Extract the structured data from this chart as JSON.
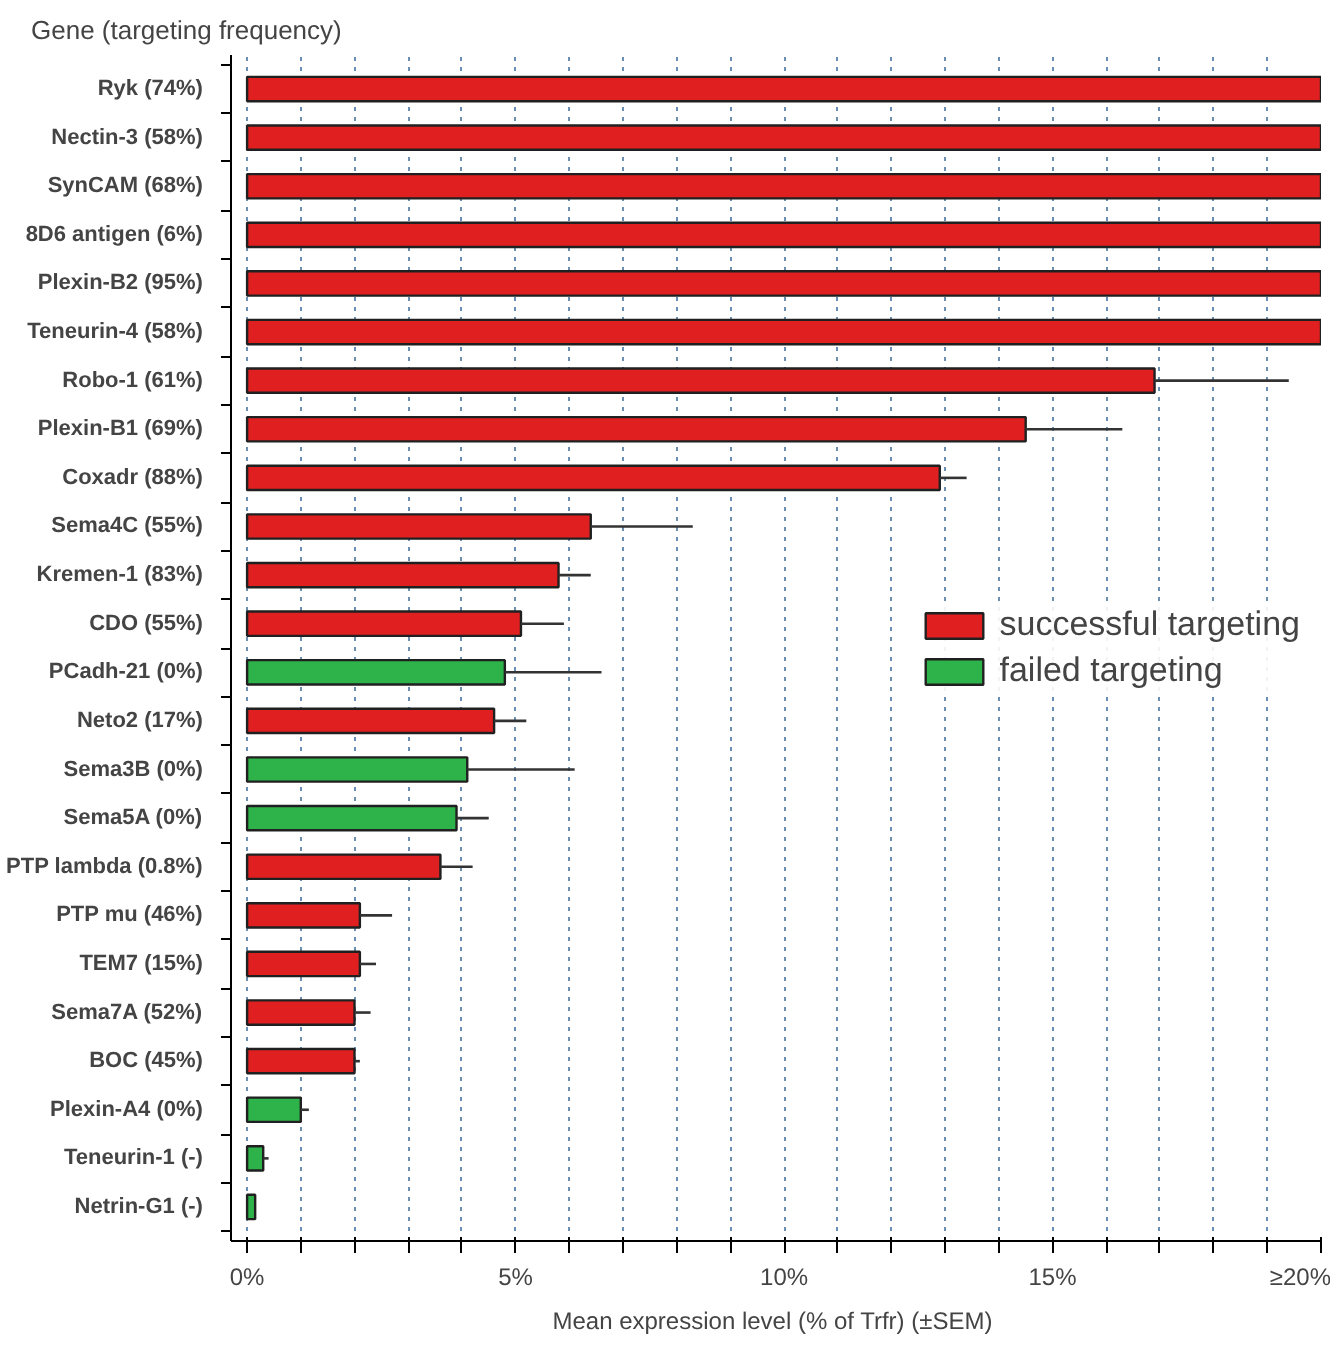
{
  "chart_data": {
    "type": "bar",
    "orientation": "horizontal",
    "ylabel": "Gene (targeting frequency)",
    "xlabel": "Mean expression level (% of Trfr)  (±SEM)",
    "categories": [
      "Ryk  (74%)",
      "Nectin-3  (58%)",
      "SynCAM  (68%)",
      "8D6 antigen  (6%)",
      "Plexin-B2  (95%)",
      "Teneurin-4  (58%)",
      "Robo-1  (61%)",
      "Plexin-B1  (69%)",
      "Coxadr  (88%)",
      "Sema4C  (55%)",
      "Kremen-1  (83%)",
      "CDO  (55%)",
      "PCadh-21  (0%)",
      "Neto2  (17%)",
      "Sema3B  (0%)",
      "Sema5A  (0%)",
      "PTP lambda  (0.8%)",
      "PTP mu  (46%)",
      "TEM7  (15%)",
      "Sema7A  (52%)",
      "BOC  (45%)",
      "Plexin-A4  (0%)",
      "Teneurin-1  (-)",
      "Netrin-G1  (-)"
    ],
    "series": [
      {
        "name": "successful targeting",
        "color": "#e02020",
        "values": [
          20,
          20,
          20,
          20,
          20,
          20,
          16.9,
          14.5,
          12.9,
          6.4,
          5.8,
          5.1,
          null,
          4.6,
          null,
          null,
          3.6,
          2.1,
          2.1,
          2.0,
          2.0,
          null,
          null,
          null
        ],
        "errors": [
          null,
          null,
          null,
          null,
          null,
          null,
          [
            16.9,
            19.4
          ],
          [
            14.5,
            16.3
          ],
          [
            12.9,
            13.4
          ],
          [
            6.4,
            8.3
          ],
          [
            5.8,
            6.4
          ],
          [
            5.1,
            5.9
          ],
          null,
          [
            4.6,
            5.2
          ],
          null,
          null,
          [
            3.6,
            4.2
          ],
          [
            2.1,
            2.7
          ],
          [
            2.1,
            2.4
          ],
          [
            2.0,
            2.3
          ],
          [
            2.0,
            2.1
          ],
          null,
          null,
          null
        ]
      },
      {
        "name": "failed targeting",
        "color": "#2db34a",
        "values": [
          null,
          null,
          null,
          null,
          null,
          null,
          null,
          null,
          null,
          null,
          null,
          null,
          4.8,
          null,
          4.1,
          3.9,
          null,
          null,
          null,
          null,
          null,
          1.0,
          0.3,
          0.15
        ],
        "errors": [
          null,
          null,
          null,
          null,
          null,
          null,
          null,
          null,
          null,
          null,
          null,
          null,
          [
            4.8,
            6.6
          ],
          null,
          [
            4.1,
            6.1
          ],
          [
            3.9,
            4.5
          ],
          null,
          null,
          null,
          null,
          null,
          [
            1.0,
            1.15
          ],
          [
            0.3,
            0.4
          ],
          null
        ]
      }
    ],
    "xlim": [
      -0.3,
      20
    ],
    "xticks": [
      {
        "value": 0,
        "label": "0%"
      },
      {
        "value": 1,
        "label": null
      },
      {
        "value": 2,
        "label": null
      },
      {
        "value": 3,
        "label": null
      },
      {
        "value": 4,
        "label": null
      },
      {
        "value": 5,
        "label": "5%"
      },
      {
        "value": 6,
        "label": null
      },
      {
        "value": 7,
        "label": null
      },
      {
        "value": 8,
        "label": null
      },
      {
        "value": 9,
        "label": null
      },
      {
        "value": 10,
        "label": "10%"
      },
      {
        "value": 11,
        "label": null
      },
      {
        "value": 12,
        "label": null
      },
      {
        "value": 13,
        "label": null
      },
      {
        "value": 14,
        "label": null
      },
      {
        "value": 15,
        "label": "15%"
      },
      {
        "value": 16,
        "label": null
      },
      {
        "value": 17,
        "label": null
      },
      {
        "value": 18,
        "label": null
      },
      {
        "value": 19,
        "label": null
      },
      {
        "value": 20,
        "label": "≥20%"
      }
    ],
    "grid": "x",
    "legend": "right"
  }
}
